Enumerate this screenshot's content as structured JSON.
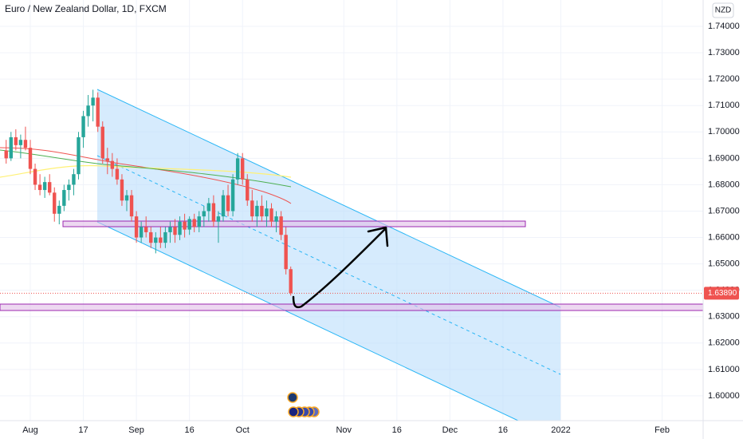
{
  "chart_data": {
    "type": "candlestick",
    "title": "Euro / New Zealand Dollar, 1D, FXCM",
    "currency": "NZD",
    "x": [
      -5,
      -4,
      -3,
      -2,
      -1,
      0,
      1,
      2,
      3,
      4,
      5,
      6,
      7,
      8,
      9,
      10,
      11,
      12,
      13,
      14,
      15,
      16,
      17,
      18,
      19,
      20,
      21,
      22,
      23,
      24,
      25,
      26,
      27,
      28,
      29,
      30,
      31,
      32,
      33,
      34,
      35,
      36,
      37,
      38,
      39,
      40,
      41,
      42,
      43,
      44,
      45,
      46,
      47,
      48,
      49,
      50,
      51,
      52,
      53,
      54
    ],
    "open": [
      1.693,
      1.69,
      1.698,
      1.695,
      1.697,
      1.694,
      1.686,
      1.68,
      1.678,
      1.681,
      1.677,
      1.669,
      1.672,
      1.678,
      1.68,
      1.684,
      1.698,
      1.706,
      1.71,
      1.713,
      1.702,
      1.69,
      1.689,
      1.686,
      1.682,
      1.674,
      1.676,
      1.668,
      1.66,
      1.664,
      1.662,
      1.658,
      1.66,
      1.658,
      1.662,
      1.664,
      1.661,
      1.666,
      1.663,
      1.667,
      1.664,
      1.668,
      1.67,
      1.673,
      1.666,
      1.668,
      1.676,
      1.67,
      1.682,
      1.69,
      1.682,
      1.674,
      1.668,
      1.672,
      1.668,
      1.671,
      1.666,
      1.668,
      1.661,
      1.648
    ],
    "high": [
      1.697,
      1.7,
      1.701,
      1.699,
      1.702,
      1.697,
      1.688,
      1.684,
      1.683,
      1.684,
      1.679,
      1.674,
      1.68,
      1.682,
      1.686,
      1.7,
      1.708,
      1.714,
      1.716,
      1.715,
      1.704,
      1.694,
      1.692,
      1.69,
      1.684,
      1.678,
      1.678,
      1.67,
      1.666,
      1.668,
      1.664,
      1.662,
      1.664,
      1.664,
      1.666,
      1.667,
      1.668,
      1.669,
      1.668,
      1.669,
      1.67,
      1.672,
      1.675,
      1.676,
      1.67,
      1.678,
      1.68,
      1.684,
      1.692,
      1.692,
      1.684,
      1.678,
      1.674,
      1.676,
      1.674,
      1.673,
      1.67,
      1.67,
      1.664,
      1.649
    ],
    "low": [
      1.688,
      1.689,
      1.693,
      1.69,
      1.693,
      1.684,
      1.678,
      1.676,
      1.675,
      1.676,
      1.666,
      1.665,
      1.67,
      1.674,
      1.676,
      1.682,
      1.694,
      1.702,
      1.704,
      1.7,
      1.688,
      1.684,
      1.683,
      1.68,
      1.672,
      1.67,
      1.666,
      1.658,
      1.658,
      1.66,
      1.656,
      1.654,
      1.656,
      1.656,
      1.658,
      1.658,
      1.659,
      1.66,
      1.661,
      1.662,
      1.662,
      1.664,
      1.666,
      1.664,
      1.658,
      1.666,
      1.668,
      1.668,
      1.68,
      1.68,
      1.672,
      1.666,
      1.664,
      1.666,
      1.664,
      1.664,
      1.662,
      1.659,
      1.646,
      1.638
    ],
    "close": [
      1.69,
      1.698,
      1.695,
      1.697,
      1.694,
      1.686,
      1.68,
      1.678,
      1.681,
      1.677,
      1.669,
      1.672,
      1.678,
      1.68,
      1.684,
      1.698,
      1.706,
      1.71,
      1.713,
      1.702,
      1.69,
      1.689,
      1.686,
      1.682,
      1.674,
      1.676,
      1.668,
      1.66,
      1.664,
      1.662,
      1.658,
      1.66,
      1.658,
      1.662,
      1.664,
      1.661,
      1.666,
      1.663,
      1.667,
      1.664,
      1.668,
      1.67,
      1.673,
      1.666,
      1.668,
      1.676,
      1.67,
      1.682,
      1.69,
      1.682,
      1.674,
      1.668,
      1.672,
      1.668,
      1.671,
      1.666,
      1.668,
      1.661,
      1.648,
      1.6389
    ],
    "up_color": "#26a69a",
    "down_color": "#ef5350",
    "xlim": [
      -6.28,
      139.5
    ],
    "xticks": [
      {
        "value": 0,
        "label": "Aug"
      },
      {
        "value": 11,
        "label": "17"
      },
      {
        "value": 22,
        "label": "Sep"
      },
      {
        "value": 33,
        "label": "16"
      },
      {
        "value": 44,
        "label": "Oct"
      },
      {
        "value": 65,
        "label": "Nov"
      },
      {
        "value": 76,
        "label": "16"
      },
      {
        "value": 87,
        "label": "Dec"
      },
      {
        "value": 98,
        "label": "16"
      },
      {
        "value": 110,
        "label": "2022"
      },
      {
        "value": 131,
        "label": "Feb"
      }
    ],
    "ylim": [
      1.5906,
      1.75
    ],
    "yticks": [
      {
        "value": 1.74,
        "label": "1.74000"
      },
      {
        "value": 1.73,
        "label": "1.73000"
      },
      {
        "value": 1.72,
        "label": "1.72000"
      },
      {
        "value": 1.71,
        "label": "1.71000"
      },
      {
        "value": 1.7,
        "label": "1.70000"
      },
      {
        "value": 1.69,
        "label": "1.69000"
      },
      {
        "value": 1.68,
        "label": "1.68000"
      },
      {
        "value": 1.67,
        "label": "1.67000"
      },
      {
        "value": 1.66,
        "label": "1.66000"
      },
      {
        "value": 1.65,
        "label": "1.65000"
      },
      {
        "value": 1.64,
        "label": "1.64000"
      },
      {
        "value": 1.63,
        "label": "1.63000"
      },
      {
        "value": 1.62,
        "label": "1.62000"
      },
      {
        "value": 1.61,
        "label": "1.61000"
      },
      {
        "value": 1.6,
        "label": "1.60000"
      }
    ],
    "last_price": {
      "value": 1.6389,
      "label": "1.63890"
    },
    "grid": true
  }
}
